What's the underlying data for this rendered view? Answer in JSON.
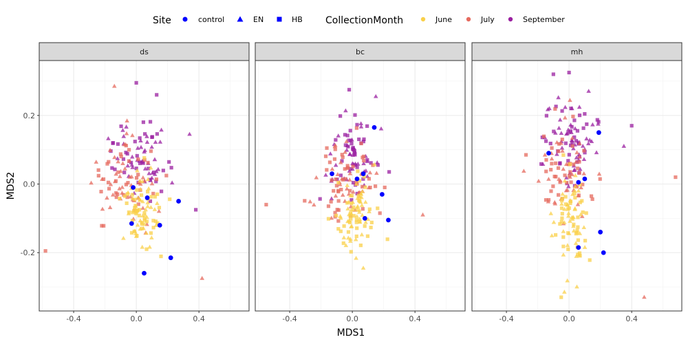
{
  "chart_data": {
    "type": "scatter",
    "xlabel": "MDS1",
    "ylabel": "MDS2",
    "xlim": [
      -0.62,
      0.72
    ],
    "ylim": [
      -0.37,
      0.36
    ],
    "x_ticks": [
      -0.4,
      0.0,
      0.4
    ],
    "x_tick_labels": [
      "-0.4",
      "0.0",
      "0.4"
    ],
    "y_ticks": [
      -0.2,
      0.0,
      0.2
    ],
    "y_tick_labels": [
      "-0.2",
      "0.0",
      "0.2"
    ],
    "grid": true,
    "legend_position": "top",
    "legend": {
      "site_title": "Site",
      "site_items": [
        {
          "label": "control",
          "shape": "circle"
        },
        {
          "label": "EN",
          "shape": "triangle"
        },
        {
          "label": "HB",
          "shape": "square"
        }
      ],
      "month_title": "CollectionMonth",
      "month_items": [
        {
          "label": "June",
          "color": "#F9D04A"
        },
        {
          "label": "July",
          "color": "#E66A5E"
        },
        {
          "label": "September",
          "color": "#9A1FA0"
        }
      ]
    },
    "control_color": "#0000FF",
    "panels": [
      {
        "name": "ds",
        "control_points": [
          [
            -0.02,
            -0.01
          ],
          [
            0.07,
            -0.04
          ],
          [
            0.27,
            -0.05
          ],
          [
            -0.03,
            -0.115
          ],
          [
            0.15,
            -0.12
          ],
          [
            0.22,
            -0.215
          ],
          [
            0.05,
            -0.26
          ]
        ],
        "seed": 11,
        "groups": [
          {
            "month": "September",
            "count": 75,
            "cx": 0.02,
            "cy": 0.08,
            "sx": 0.085,
            "sy": 0.055
          },
          {
            "month": "July",
            "count": 80,
            "cx": -0.06,
            "cy": 0.01,
            "sx": 0.1,
            "sy": 0.06
          },
          {
            "month": "June",
            "count": 85,
            "cx": 0.03,
            "cy": -0.08,
            "sx": 0.055,
            "sy": 0.05
          }
        ],
        "extra_points": [
          {
            "month": "July",
            "shape": "square",
            "x": -0.58,
            "y": -0.195
          },
          {
            "month": "July",
            "shape": "triangle",
            "x": 0.42,
            "y": -0.275
          },
          {
            "month": "July",
            "shape": "triangle",
            "x": -0.14,
            "y": 0.285
          },
          {
            "month": "September",
            "shape": "triangle",
            "x": 0.34,
            "y": 0.145
          },
          {
            "month": "September",
            "shape": "square",
            "x": 0.38,
            "y": -0.075
          },
          {
            "month": "September",
            "shape": "square",
            "x": 0.0,
            "y": 0.295
          },
          {
            "month": "September",
            "shape": "square",
            "x": 0.13,
            "y": 0.26
          }
        ]
      },
      {
        "name": "bc",
        "control_points": [
          [
            0.14,
            0.165
          ],
          [
            -0.13,
            0.03
          ],
          [
            0.07,
            0.03
          ],
          [
            0.03,
            0.015
          ],
          [
            0.19,
            -0.03
          ],
          [
            0.08,
            -0.1
          ],
          [
            0.23,
            -0.105
          ]
        ],
        "seed": 23,
        "groups": [
          {
            "month": "September",
            "count": 75,
            "cx": 0.0,
            "cy": 0.08,
            "sx": 0.08,
            "sy": 0.055
          },
          {
            "month": "July",
            "count": 80,
            "cx": -0.04,
            "cy": 0.0,
            "sx": 0.09,
            "sy": 0.06
          },
          {
            "month": "June",
            "count": 85,
            "cx": 0.02,
            "cy": -0.08,
            "sx": 0.06,
            "sy": 0.05
          }
        ],
        "extra_points": [
          {
            "month": "July",
            "shape": "square",
            "x": -0.55,
            "y": -0.06
          },
          {
            "month": "July",
            "shape": "triangle",
            "x": 0.45,
            "y": -0.09
          },
          {
            "month": "September",
            "shape": "square",
            "x": -0.02,
            "y": 0.275
          },
          {
            "month": "September",
            "shape": "triangle",
            "x": 0.15,
            "y": 0.255
          },
          {
            "month": "June",
            "shape": "triangle",
            "x": 0.07,
            "y": -0.245
          }
        ]
      },
      {
        "name": "mh",
        "control_points": [
          [
            0.19,
            0.15
          ],
          [
            -0.13,
            0.09
          ],
          [
            0.06,
            0.005
          ],
          [
            0.1,
            0.015
          ],
          [
            0.06,
            -0.185
          ],
          [
            0.2,
            -0.14
          ],
          [
            0.22,
            -0.2
          ]
        ],
        "seed": 37,
        "groups": [
          {
            "month": "September",
            "count": 85,
            "cx": 0.02,
            "cy": 0.13,
            "sx": 0.09,
            "sy": 0.07
          },
          {
            "month": "July",
            "count": 80,
            "cx": -0.04,
            "cy": 0.04,
            "sx": 0.085,
            "sy": 0.07
          },
          {
            "month": "June",
            "count": 80,
            "cx": 0.03,
            "cy": -0.1,
            "sx": 0.06,
            "sy": 0.065
          }
        ],
        "extra_points": [
          {
            "month": "July",
            "shape": "square",
            "x": 0.68,
            "y": 0.02
          },
          {
            "month": "July",
            "shape": "triangle",
            "x": 0.48,
            "y": -0.33
          },
          {
            "month": "September",
            "shape": "square",
            "x": -0.1,
            "y": 0.32
          },
          {
            "month": "September",
            "shape": "square",
            "x": 0.0,
            "y": 0.325
          },
          {
            "month": "September",
            "shape": "square",
            "x": 0.4,
            "y": 0.17
          },
          {
            "month": "September",
            "shape": "triangle",
            "x": 0.35,
            "y": 0.11
          },
          {
            "month": "June",
            "shape": "square",
            "x": -0.05,
            "y": -0.33
          },
          {
            "month": "June",
            "shape": "triangle",
            "x": 0.05,
            "y": -0.3
          }
        ]
      }
    ]
  }
}
